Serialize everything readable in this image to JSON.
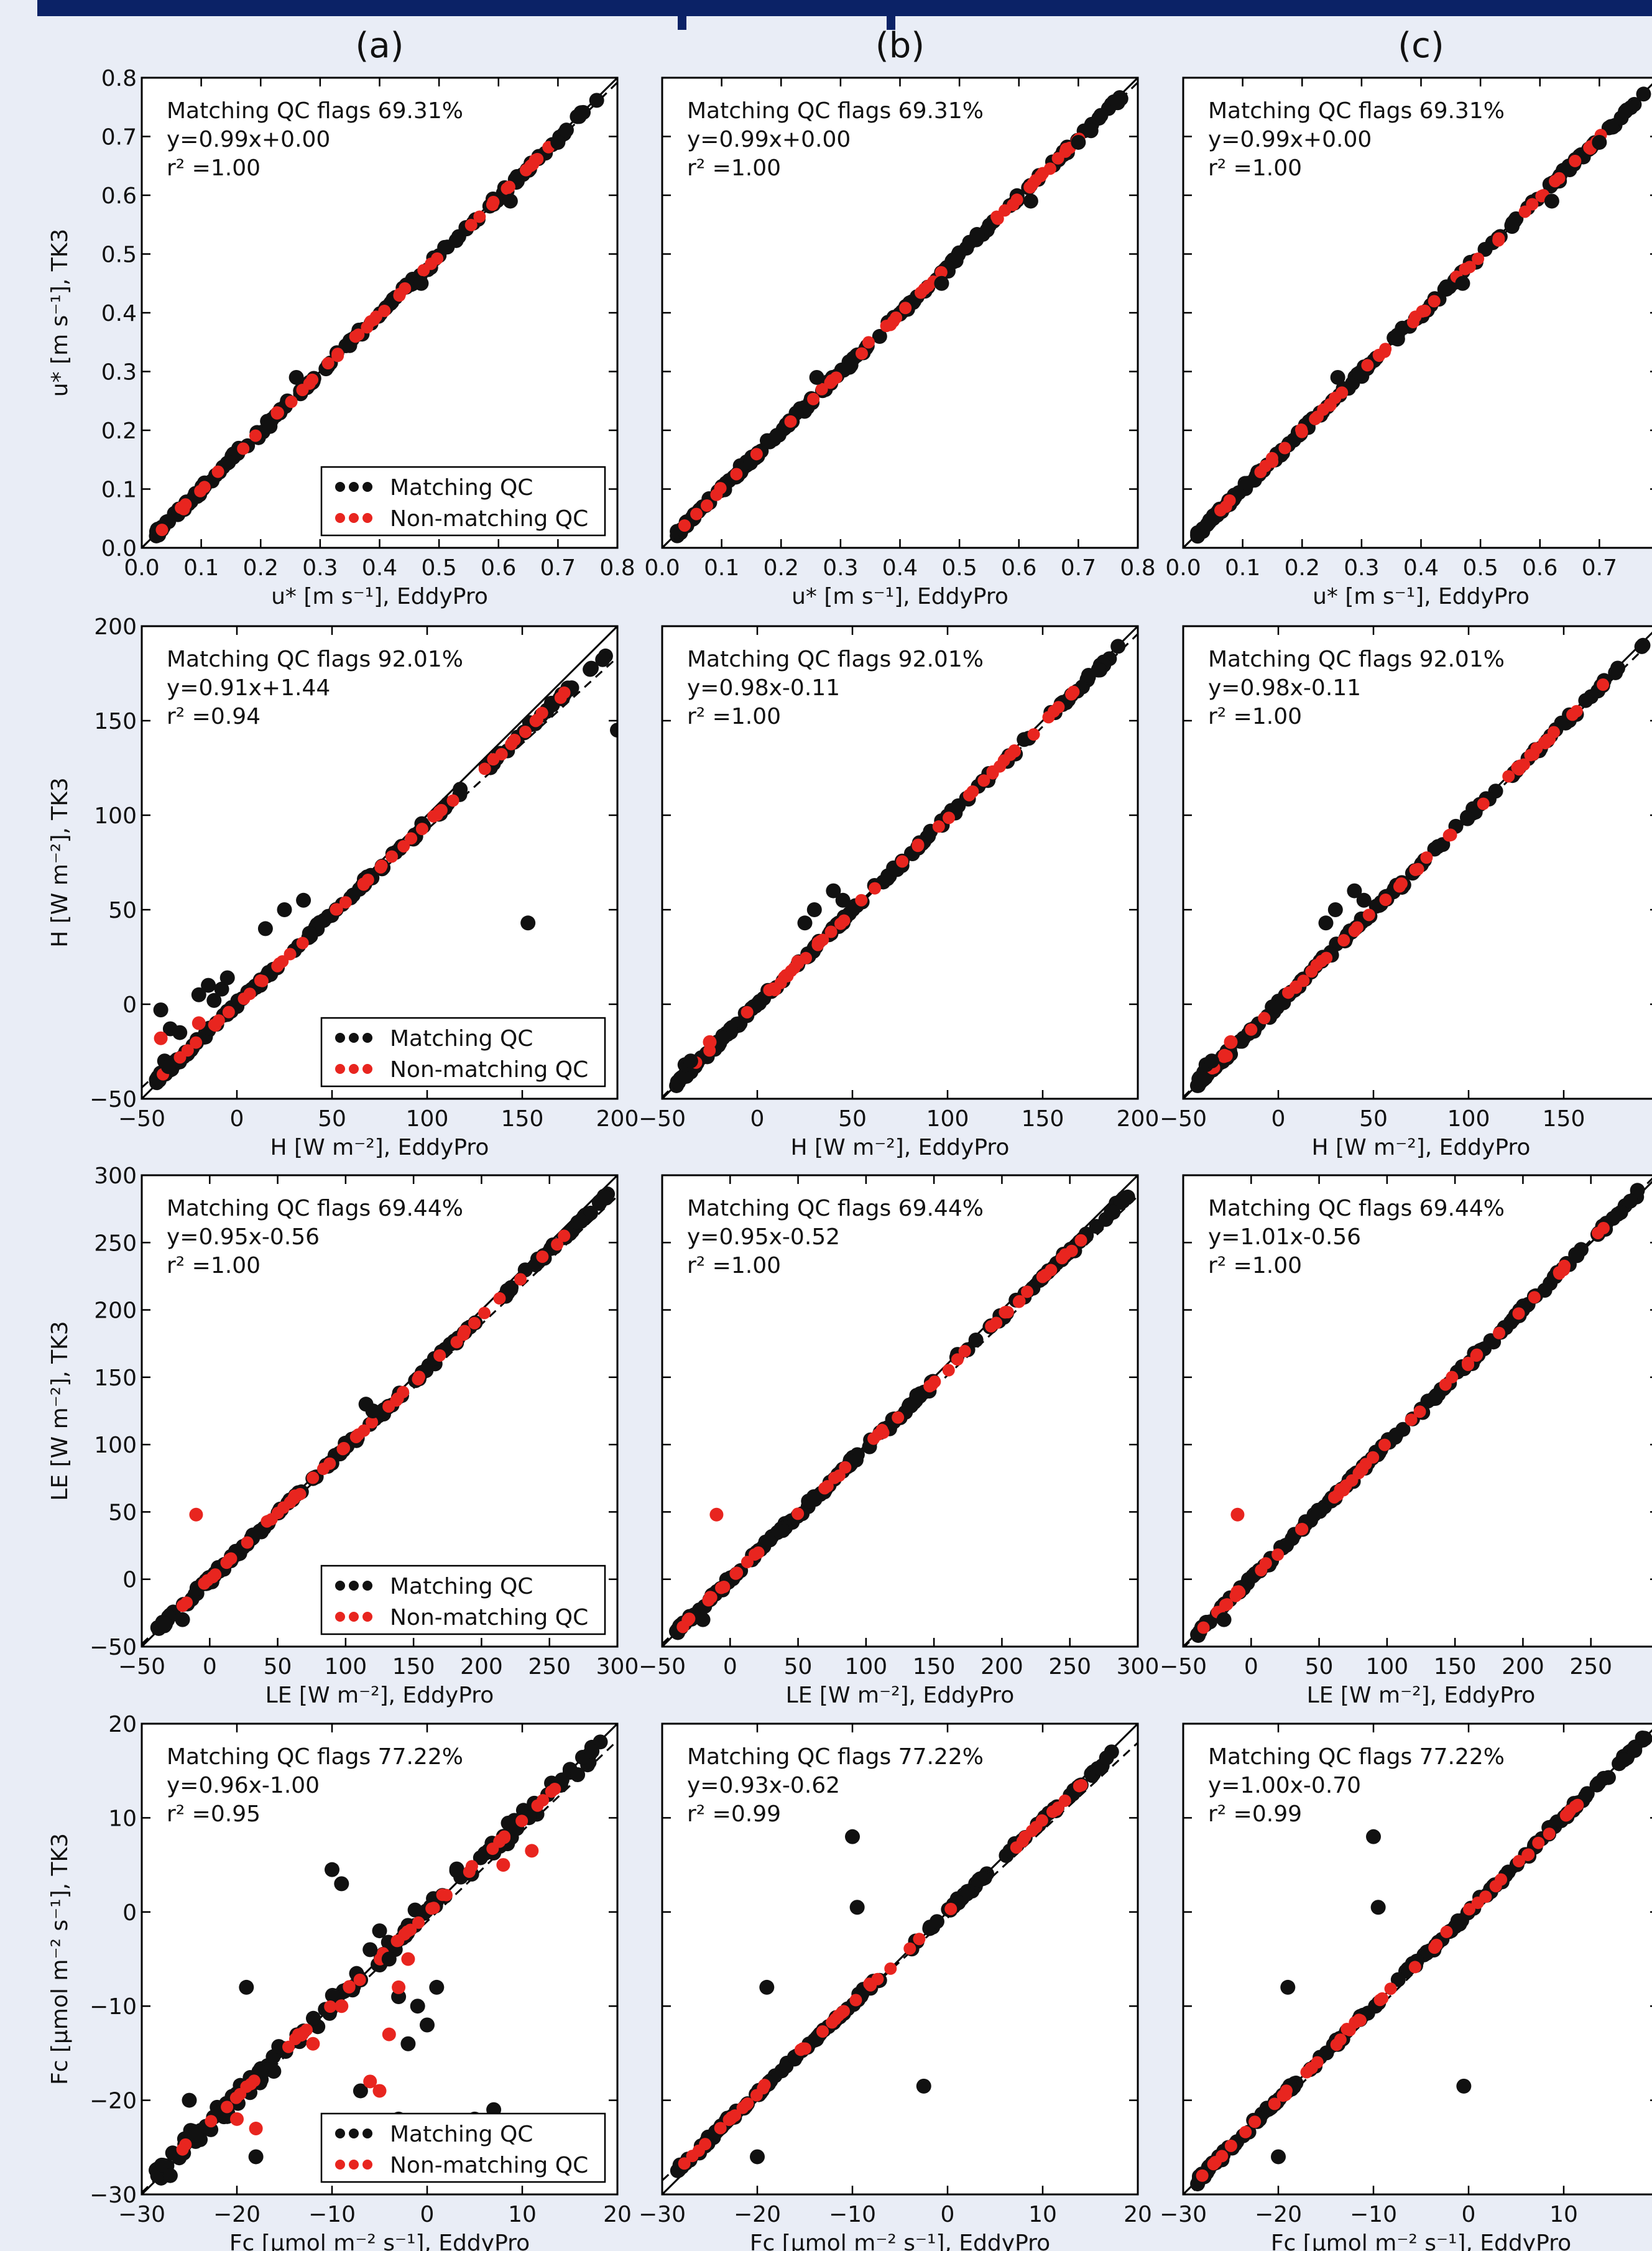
{
  "column_labels": [
    "(a)",
    "(b)",
    "(c)"
  ],
  "legend": {
    "matching": "Matching QC",
    "nonmatching": "Non-matching QC"
  },
  "colors": {
    "matching": "#111111",
    "nonmatching": "#e8251f",
    "frame": "#0b2266",
    "background": "#e9edf6"
  },
  "chart_data": [
    {
      "type": "scatter",
      "panel": "row1-(a)",
      "variable": "ustar",
      "xlim": [
        0,
        0.8
      ],
      "ylim": [
        0,
        0.8
      ],
      "xticks": [
        "0.0",
        "0.1",
        "0.2",
        "0.3",
        "0.4",
        "0.5",
        "0.6",
        "0.7",
        "0.8"
      ],
      "yticks": [
        "0.0",
        "0.1",
        "0.2",
        "0.3",
        "0.4",
        "0.5",
        "0.6",
        "0.7",
        "0.8"
      ],
      "xlabel": "u* [m s⁻¹], EddyPro",
      "ylabel": "u* [m s⁻¹], TK3",
      "annotation": [
        "Matching QC flags 69.31%",
        "y=0.99x+0.00",
        "r² =1.00"
      ],
      "fit": {
        "slope": 0.99,
        "intercept": 0.0
      },
      "legend": true,
      "outliers": {
        "matching": [
          [
            0.26,
            0.29
          ],
          [
            0.47,
            0.45
          ],
          [
            0.62,
            0.59
          ],
          [
            0.7,
            0.69
          ]
        ],
        "nonmatching": []
      }
    },
    {
      "type": "scatter",
      "panel": "row1-(b)",
      "variable": "ustar",
      "xlim": [
        0,
        0.8
      ],
      "ylim": [
        0,
        0.8
      ],
      "xticks": [
        "0.0",
        "0.1",
        "0.2",
        "0.3",
        "0.4",
        "0.5",
        "0.6",
        "0.7",
        "0.8"
      ],
      "yticks": [],
      "xlabel": "u* [m s⁻¹], EddyPro",
      "ylabel": "",
      "annotation": [
        "Matching QC flags 69.31%",
        "y=0.99x+0.00",
        "r² =1.00"
      ],
      "fit": {
        "slope": 0.99,
        "intercept": 0.0
      },
      "legend": false,
      "outliers": {
        "matching": [
          [
            0.26,
            0.29
          ],
          [
            0.47,
            0.45
          ],
          [
            0.62,
            0.59
          ],
          [
            0.7,
            0.69
          ]
        ],
        "nonmatching": []
      }
    },
    {
      "type": "scatter",
      "panel": "row1-(c)",
      "variable": "ustar",
      "xlim": [
        0,
        0.8
      ],
      "ylim": [
        0,
        0.8
      ],
      "xticks": [
        "0.0",
        "0.1",
        "0.2",
        "0.3",
        "0.4",
        "0.5",
        "0.6",
        "0.7"
      ],
      "yticks": [],
      "xlabel": "u* [m s⁻¹], EddyPro",
      "ylabel": "",
      "annotation": [
        "Matching QC flags 69.31%",
        "y=0.99x+0.00",
        "r² =1.00"
      ],
      "fit": {
        "slope": 0.99,
        "intercept": 0.0
      },
      "legend": false,
      "outliers": {
        "matching": [
          [
            0.26,
            0.29
          ],
          [
            0.47,
            0.45
          ],
          [
            0.62,
            0.59
          ],
          [
            0.7,
            0.69
          ]
        ],
        "nonmatching": []
      }
    },
    {
      "type": "scatter",
      "panel": "row2-(a)",
      "variable": "H",
      "xlim": [
        -50,
        200
      ],
      "ylim": [
        -50,
        200
      ],
      "xticks": [
        "−50",
        "0",
        "50",
        "100",
        "150",
        "200"
      ],
      "yticks": [
        "−50",
        "0",
        "50",
        "100",
        "150",
        "200"
      ],
      "xlabel": "H [W m⁻²], EddyPro",
      "ylabel": "H [W m⁻²], TK3",
      "annotation": [
        "Matching QC flags 92.01%",
        "y=0.91x+1.44",
        "r² =0.94"
      ],
      "fit": {
        "slope": 0.91,
        "intercept": 1.44
      },
      "legend": true,
      "outliers": {
        "matching": [
          [
            200,
            145
          ],
          [
            153,
            43
          ],
          [
            -40,
            -3
          ],
          [
            -35,
            -13
          ],
          [
            -30,
            -15
          ],
          [
            -20,
            5
          ],
          [
            -15,
            10
          ],
          [
            -12,
            2
          ],
          [
            -8,
            8
          ],
          [
            -5,
            14
          ],
          [
            15,
            40
          ],
          [
            25,
            50
          ],
          [
            35,
            55
          ],
          [
            -38,
            -30
          ],
          [
            -36,
            -33
          ]
        ],
        "nonmatching": [
          [
            -40,
            -18
          ],
          [
            -20,
            -10
          ]
        ]
      }
    },
    {
      "type": "scatter",
      "panel": "row2-(b)",
      "variable": "H",
      "xlim": [
        -50,
        200
      ],
      "ylim": [
        -50,
        200
      ],
      "xticks": [
        "−50",
        "0",
        "50",
        "100",
        "150",
        "200"
      ],
      "yticks": [],
      "xlabel": "H [W m⁻²], EddyPro",
      "ylabel": "",
      "annotation": [
        "Matching QC flags 92.01%",
        "y=0.98x-0.11",
        "r² =1.00"
      ],
      "fit": {
        "slope": 0.98,
        "intercept": -0.11
      },
      "legend": false,
      "outliers": {
        "matching": [
          [
            -38,
            -32
          ],
          [
            -35,
            -30
          ],
          [
            25,
            43
          ],
          [
            30,
            50
          ],
          [
            40,
            60
          ],
          [
            45,
            55
          ]
        ],
        "nonmatching": [
          [
            -25,
            -20
          ]
        ]
      }
    },
    {
      "type": "scatter",
      "panel": "row2-(c)",
      "variable": "H",
      "xlim": [
        -50,
        200
      ],
      "ylim": [
        -50,
        200
      ],
      "xticks": [
        "−50",
        "0",
        "50",
        "100",
        "150"
      ],
      "yticks": [],
      "xlabel": "H [W m⁻²], EddyPro",
      "ylabel": "",
      "annotation": [
        "Matching QC flags 92.01%",
        "y=0.98x-0.11",
        "r² =1.00"
      ],
      "fit": {
        "slope": 0.98,
        "intercept": -0.11
      },
      "legend": false,
      "outliers": {
        "matching": [
          [
            -38,
            -32
          ],
          [
            -35,
            -30
          ],
          [
            25,
            43
          ],
          [
            30,
            50
          ],
          [
            40,
            60
          ],
          [
            45,
            55
          ]
        ],
        "nonmatching": [
          [
            -25,
            -20
          ]
        ]
      }
    },
    {
      "type": "scatter",
      "panel": "row3-(a)",
      "variable": "LE",
      "xlim": [
        -50,
        300
      ],
      "ylim": [
        -50,
        300
      ],
      "xticks": [
        "−50",
        "0",
        "50",
        "100",
        "150",
        "200",
        "250",
        "300"
      ],
      "yticks": [
        "−50",
        "0",
        "50",
        "100",
        "150",
        "200",
        "250",
        "300"
      ],
      "xlabel": "LE [W m⁻²], EddyPro",
      "ylabel": "LE [W m⁻²], TK3",
      "annotation": [
        "Matching QC flags 69.44%",
        "y=0.95x-0.56",
        "r² =1.00"
      ],
      "fit": {
        "slope": 0.95,
        "intercept": -0.56
      },
      "legend": true,
      "outliers": {
        "matching": [
          [
            -20,
            -30
          ],
          [
            115,
            130
          ],
          [
            120,
            125
          ]
        ],
        "nonmatching": [
          [
            -10,
            48
          ]
        ]
      }
    },
    {
      "type": "scatter",
      "panel": "row3-(b)",
      "variable": "LE",
      "xlim": [
        -50,
        300
      ],
      "ylim": [
        -50,
        300
      ],
      "xticks": [
        "−50",
        "0",
        "50",
        "100",
        "150",
        "200",
        "250",
        "300"
      ],
      "yticks": [],
      "xlabel": "LE [W m⁻²], EddyPro",
      "ylabel": "",
      "annotation": [
        "Matching QC flags 69.44%",
        "y=0.95x-0.52",
        "r² =1.00"
      ],
      "fit": {
        "slope": 0.95,
        "intercept": -0.52
      },
      "legend": false,
      "outliers": {
        "matching": [
          [
            -20,
            -30
          ]
        ],
        "nonmatching": [
          [
            -10,
            48
          ]
        ]
      }
    },
    {
      "type": "scatter",
      "panel": "row3-(c)",
      "variable": "LE",
      "xlim": [
        -50,
        300
      ],
      "ylim": [
        -50,
        300
      ],
      "xticks": [
        "−50",
        "0",
        "50",
        "100",
        "150",
        "200",
        "250"
      ],
      "yticks": [],
      "xlabel": "LE [W m⁻²], EddyPro",
      "ylabel": "",
      "annotation": [
        "Matching QC flags 69.44%",
        "y=1.01x-0.56",
        "r² =1.00"
      ],
      "fit": {
        "slope": 1.01,
        "intercept": -0.56
      },
      "legend": false,
      "outliers": {
        "matching": [
          [
            -20,
            -30
          ]
        ],
        "nonmatching": [
          [
            -10,
            48
          ]
        ]
      }
    },
    {
      "type": "scatter",
      "panel": "row4-(a)",
      "variable": "Fc",
      "xlim": [
        -30,
        20
      ],
      "ylim": [
        -30,
        20
      ],
      "xticks": [
        "−30",
        "−20",
        "−10",
        "0",
        "10",
        "20"
      ],
      "yticks": [
        "−30",
        "−20",
        "−10",
        "0",
        "10",
        "20"
      ],
      "xlabel": "Fc [μmol m⁻² s⁻¹], EddyPro",
      "ylabel": "Fc [μmol m⁻² s⁻¹], TK3",
      "annotation": [
        "Matching QC flags 77.22%",
        "y=0.96x-1.00",
        "r² =0.95"
      ],
      "fit": {
        "slope": 0.96,
        "intercept": -1.0
      },
      "legend": true,
      "outliers": {
        "matching": [
          [
            -19,
            -8
          ],
          [
            -10,
            4.5
          ],
          [
            -9,
            3
          ],
          [
            -6,
            -4
          ],
          [
            -5,
            -2
          ],
          [
            -4,
            -5
          ],
          [
            -3,
            -9
          ],
          [
            -2,
            -14
          ],
          [
            -1,
            -10
          ],
          [
            0,
            -12
          ],
          [
            1,
            -8
          ],
          [
            -7,
            -19
          ],
          [
            -3,
            -22
          ],
          [
            5,
            -22
          ],
          [
            7,
            -21
          ],
          [
            -18,
            -26
          ],
          [
            -25,
            -20
          ],
          [
            -27,
            -28
          ]
        ],
        "nonmatching": [
          [
            -20,
            -22
          ],
          [
            -18,
            -23
          ],
          [
            -6,
            -18
          ],
          [
            -5,
            -19
          ],
          [
            -4,
            -13
          ],
          [
            -3,
            -8
          ],
          [
            -2,
            -5
          ],
          [
            -12,
            -14
          ],
          [
            -9,
            -10
          ],
          [
            8,
            5
          ],
          [
            11,
            6.5
          ]
        ]
      }
    },
    {
      "type": "scatter",
      "panel": "row4-(b)",
      "variable": "Fc",
      "xlim": [
        -30,
        20
      ],
      "ylim": [
        -30,
        20
      ],
      "xticks": [
        "−30",
        "−20",
        "−10",
        "0",
        "10",
        "20"
      ],
      "yticks": [],
      "xlabel": "Fc [μmol m⁻² s⁻¹], EddyPro",
      "ylabel": "",
      "annotation": [
        "Matching QC flags 77.22%",
        "y=0.93x-0.62",
        "r² =0.99"
      ],
      "fit": {
        "slope": 0.93,
        "intercept": -0.62
      },
      "legend": false,
      "outliers": {
        "matching": [
          [
            -19,
            -8
          ],
          [
            -10,
            8
          ],
          [
            -9.5,
            0.5
          ],
          [
            -2.5,
            -18.5
          ],
          [
            -20,
            -26
          ]
        ],
        "nonmatching": []
      }
    },
    {
      "type": "scatter",
      "panel": "row4-(c)",
      "variable": "Fc",
      "xlim": [
        -30,
        20
      ],
      "ylim": [
        -30,
        20
      ],
      "xticks": [
        "−30",
        "−20",
        "−10",
        "0",
        "10"
      ],
      "yticks": [],
      "xlabel": "Fc [μmol m⁻² s⁻¹], EddyPro",
      "ylabel": "",
      "annotation": [
        "Matching QC flags 77.22%",
        "y=1.00x-0.70",
        "r² =0.99"
      ],
      "fit": {
        "slope": 1.0,
        "intercept": -0.7
      },
      "legend": false,
      "outliers": {
        "matching": [
          [
            -19,
            -8
          ],
          [
            -10,
            8
          ],
          [
            -9.5,
            0.5
          ],
          [
            -0.5,
            -18.5
          ],
          [
            -20,
            -26
          ]
        ],
        "nonmatching": []
      }
    }
  ]
}
